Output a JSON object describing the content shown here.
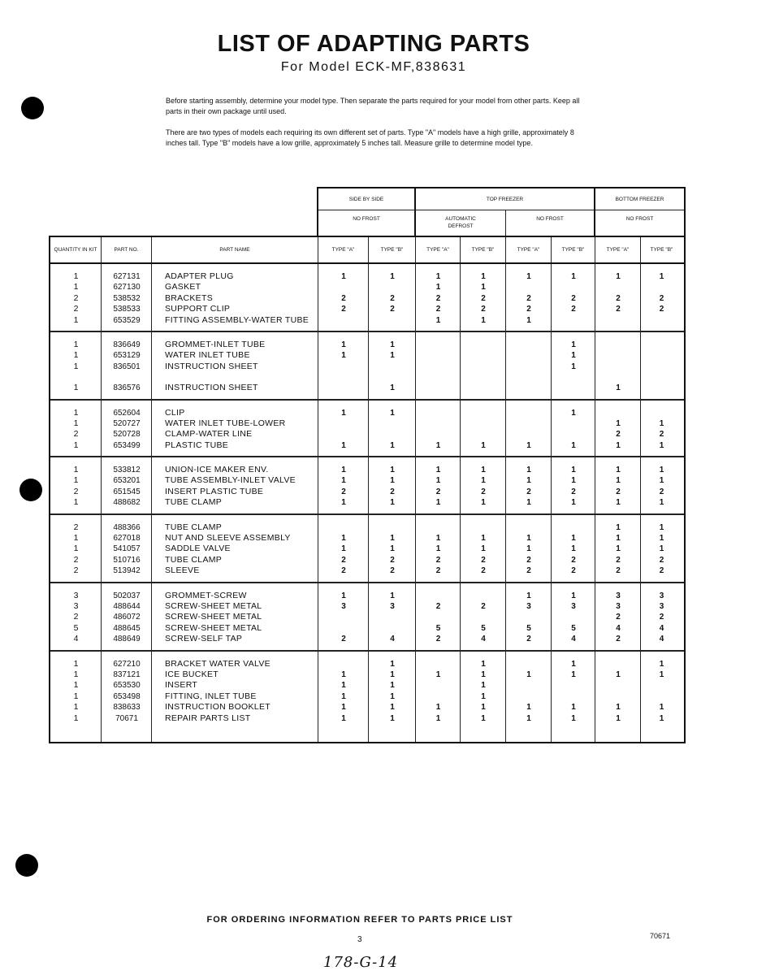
{
  "title": "LIST OF ADAPTING PARTS",
  "subtitle": "For Model  ECK-MF,838631",
  "intro": [
    "Before starting assembly, determine your model type. Then separate the parts required for your model from other parts. Keep all parts in their own package until used.",
    "There are two types of models each requiring its own different set of parts. Type \"A\" models have a high grille, approximately 8 inches tall. Type \"B\" models have a low grille, approximately 5 inches tall. Measure grille to determine model type."
  ],
  "table": {
    "groups": [
      "SIDE BY SIDE",
      "TOP FREEZER",
      "BOTTOM FREEZER"
    ],
    "subgroups": [
      "NO FROST",
      "AUTOMATIC DEFROST",
      "NO FROST",
      "NO FROST"
    ],
    "columns": [
      "QUANTITY IN KIT",
      "PART NO.",
      "PART NAME",
      "TYPE \"A\"",
      "TYPE \"B\"",
      "TYPE \"A\"",
      "TYPE \"B\"",
      "TYPE \"A\"",
      "TYPE \"B\"",
      "TYPE \"A\"",
      "TYPE \"B\""
    ],
    "row_groups": [
      [
        {
          "qty": "1",
          "part": "627131",
          "name": "ADAPTER PLUG",
          "v": [
            "1",
            "1",
            "1",
            "1",
            "1",
            "1",
            "1",
            "1"
          ]
        },
        {
          "qty": "1",
          "part": "627130",
          "name": "GASKET",
          "v": [
            "",
            "",
            "1",
            "1",
            "",
            "",
            "",
            ""
          ]
        },
        {
          "qty": "2",
          "part": "538532",
          "name": "BRACKETS",
          "v": [
            "2",
            "2",
            "2",
            "2",
            "2",
            "2",
            "2",
            "2"
          ]
        },
        {
          "qty": "2",
          "part": "538533",
          "name": "SUPPORT CLIP",
          "v": [
            "2",
            "2",
            "2",
            "2",
            "2",
            "2",
            "2",
            "2"
          ]
        },
        {
          "qty": "1",
          "part": "653529",
          "name": "FITTING ASSEMBLY-WATER TUBE",
          "v": [
            "",
            "",
            "1",
            "1",
            "1",
            "",
            "",
            ""
          ]
        }
      ],
      [
        {
          "qty": "1",
          "part": "836649",
          "name": "GROMMET-INLET TUBE",
          "v": [
            "1",
            "1",
            "",
            "",
            "",
            "1",
            "",
            ""
          ]
        },
        {
          "qty": "1",
          "part": "653129",
          "name": "WATER INLET TUBE",
          "v": [
            "1",
            "1",
            "",
            "",
            "",
            "1",
            "",
            ""
          ]
        },
        {
          "qty": "1",
          "part": "836501",
          "name": "INSTRUCTION SHEET",
          "v": [
            "",
            "",
            "",
            "",
            "",
            "1",
            "",
            ""
          ]
        },
        {
          "qty": "1",
          "part": "836576",
          "name": "INSTRUCTION SHEET",
          "v": [
            "",
            "1",
            "",
            "",
            "",
            "",
            "1",
            ""
          ]
        }
      ],
      [
        {
          "qty": "1",
          "part": "652604",
          "name": "CLIP",
          "v": [
            "1",
            "1",
            "",
            "",
            "",
            "1",
            "",
            ""
          ]
        },
        {
          "qty": "1",
          "part": "520727",
          "name": "WATER INLET TUBE-LOWER",
          "v": [
            "",
            "",
            "",
            "",
            "",
            "",
            "1",
            "1"
          ]
        },
        {
          "qty": "2",
          "part": "520728",
          "name": "CLAMP-WATER LINE",
          "v": [
            "",
            "",
            "",
            "",
            "",
            "",
            "2",
            "2"
          ]
        },
        {
          "qty": "1",
          "part": "653499",
          "name": "PLASTIC TUBE",
          "v": [
            "1",
            "1",
            "1",
            "1",
            "1",
            "1",
            "1",
            "1"
          ]
        }
      ],
      [
        {
          "qty": "1",
          "part": "533812",
          "name": "UNION-ICE MAKER ENV.",
          "v": [
            "1",
            "1",
            "1",
            "1",
            "1",
            "1",
            "1",
            "1"
          ]
        },
        {
          "qty": "1",
          "part": "653201",
          "name": "TUBE ASSEMBLY-INLET VALVE",
          "v": [
            "1",
            "1",
            "1",
            "1",
            "1",
            "1",
            "1",
            "1"
          ]
        },
        {
          "qty": "2",
          "part": "651545",
          "name": "INSERT PLASTIC TUBE",
          "v": [
            "2",
            "2",
            "2",
            "2",
            "2",
            "2",
            "2",
            "2"
          ]
        },
        {
          "qty": "1",
          "part": "488682",
          "name": "TUBE CLAMP",
          "v": [
            "1",
            "1",
            "1",
            "1",
            "1",
            "1",
            "1",
            "1"
          ]
        }
      ],
      [
        {
          "qty": "2",
          "part": "488366",
          "name": "TUBE CLAMP",
          "v": [
            "",
            "",
            "",
            "",
            "",
            "",
            "1",
            "1"
          ]
        },
        {
          "qty": "1",
          "part": "627018",
          "name": "NUT AND SLEEVE ASSEMBLY",
          "v": [
            "1",
            "1",
            "1",
            "1",
            "1",
            "1",
            "1",
            "1"
          ]
        },
        {
          "qty": "1",
          "part": "541057",
          "name": "SADDLE VALVE",
          "v": [
            "1",
            "1",
            "1",
            "1",
            "1",
            "1",
            "1",
            "1"
          ]
        },
        {
          "qty": "2",
          "part": "510716",
          "name": "TUBE CLAMP",
          "v": [
            "2",
            "2",
            "2",
            "2",
            "2",
            "2",
            "2",
            "2"
          ]
        },
        {
          "qty": "2",
          "part": "513942",
          "name": "SLEEVE",
          "v": [
            "2",
            "2",
            "2",
            "2",
            "2",
            "2",
            "2",
            "2"
          ]
        }
      ],
      [
        {
          "qty": "3",
          "part": "502037",
          "name": "GROMMET-SCREW",
          "v": [
            "1",
            "1",
            "",
            "",
            "1",
            "1",
            "3",
            "3"
          ]
        },
        {
          "qty": "3",
          "part": "488644",
          "name": "SCREW-SHEET METAL",
          "v": [
            "3",
            "3",
            "2",
            "2",
            "3",
            "3",
            "3",
            "3"
          ]
        },
        {
          "qty": "2",
          "part": "486072",
          "name": "SCREW-SHEET METAL",
          "v": [
            "",
            "",
            "",
            "",
            "",
            "",
            "2",
            "2"
          ]
        },
        {
          "qty": "5",
          "part": "488645",
          "name": "SCREW-SHEET METAL",
          "v": [
            "",
            "",
            "5",
            "5",
            "5",
            "5",
            "4",
            "4"
          ]
        },
        {
          "qty": "4",
          "part": "488649",
          "name": "SCREW-SELF TAP",
          "v": [
            "2",
            "4",
            "2",
            "4",
            "2",
            "4",
            "2",
            "4"
          ]
        }
      ],
      [
        {
          "qty": "1",
          "part": "627210",
          "name": "BRACKET WATER VALVE",
          "v": [
            "",
            "1",
            "",
            "1",
            "",
            "1",
            "",
            "1"
          ]
        },
        {
          "qty": "1",
          "part": "837121",
          "name": "ICE BUCKET",
          "v": [
            "1",
            "1",
            "1",
            "1",
            "1",
            "1",
            "1",
            "1"
          ]
        },
        {
          "qty": "1",
          "part": "653530",
          "name": "INSERT",
          "v": [
            "1",
            "1",
            "",
            "1",
            "",
            "",
            "",
            ""
          ]
        },
        {
          "qty": "1",
          "part": "653498",
          "name": "FITTING, INLET TUBE",
          "v": [
            "1",
            "1",
            "",
            "1",
            "",
            "",
            "",
            ""
          ]
        },
        {
          "qty": "1",
          "part": "838633",
          "name": "INSTRUCTION BOOKLET",
          "v": [
            "1",
            "1",
            "1",
            "1",
            "1",
            "1",
            "1",
            "1"
          ]
        },
        {
          "qty": "1",
          "part": "70671",
          "name": "REPAIR PARTS LIST",
          "v": [
            "1",
            "1",
            "1",
            "1",
            "1",
            "1",
            "1",
            "1"
          ]
        }
      ]
    ]
  },
  "footer": "FOR ORDERING INFORMATION REFER TO PARTS PRICE LIST",
  "page_number": "3",
  "doc_number": "70671",
  "handwritten_note": "178-G-14"
}
